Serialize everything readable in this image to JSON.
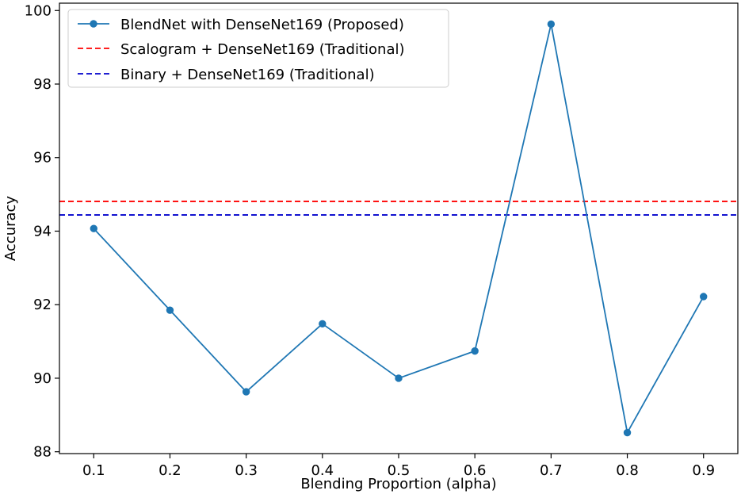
{
  "chart_data": {
    "type": "line",
    "xlabel": "Blending Proportion (alpha)",
    "ylabel": "Accuracy",
    "x": [
      0.1,
      0.2,
      0.3,
      0.4,
      0.5,
      0.6,
      0.7,
      0.8,
      0.9
    ],
    "xticks": [
      "0.1",
      "0.2",
      "0.3",
      "0.4",
      "0.5",
      "0.6",
      "0.7",
      "0.8",
      "0.9"
    ],
    "xlim": [
      0.055,
      0.945
    ],
    "yticks": [
      "88",
      "90",
      "92",
      "94",
      "96",
      "98",
      "100"
    ],
    "ylim": [
      87.95,
      100.2
    ],
    "series": [
      {
        "name": "BlendNet with DenseNet169 (Proposed)",
        "values": [
          94.07,
          91.85,
          89.63,
          91.48,
          90.0,
          90.74,
          99.63,
          88.52,
          92.22
        ],
        "color": "#1f77b4",
        "style": "solid",
        "marker": "circle"
      }
    ],
    "reference_lines": [
      {
        "name": "Scalogram + DenseNet169 (Traditional)",
        "value": 94.81,
        "color": "#ff0000",
        "style": "dashed"
      },
      {
        "name": "Binary + DenseNet169 (Traditional)",
        "value": 94.44,
        "color": "#0000cc",
        "style": "dashed"
      }
    ],
    "legend_position": "top-left",
    "grid": false
  }
}
